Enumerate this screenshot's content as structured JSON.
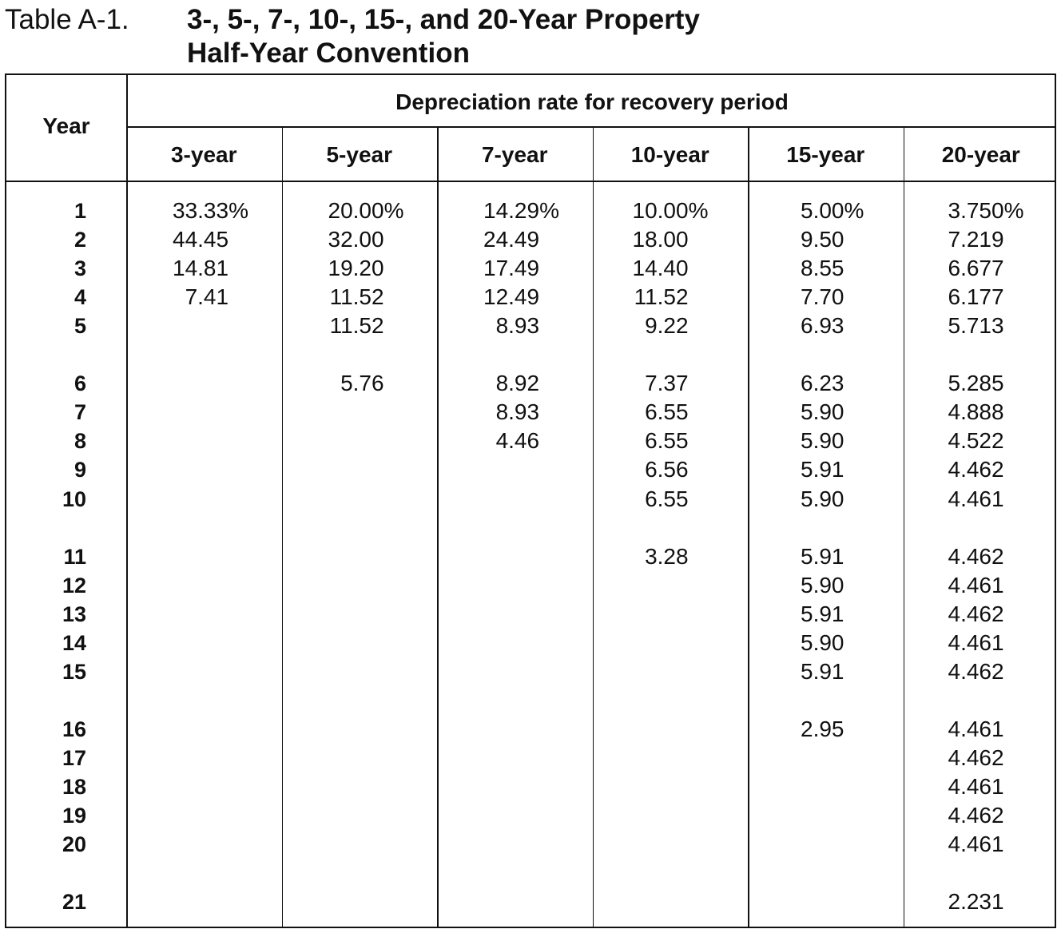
{
  "caption": {
    "label": "Table A-1.",
    "title_line1": "3-, 5-, 7-, 10-, 15-, and 20-Year Property",
    "title_line2": "Half-Year Convention"
  },
  "table": {
    "year_header": "Year",
    "group_header": "Depreciation rate for recovery period",
    "columns": [
      "3-year",
      "5-year",
      "7-year",
      "10-year",
      "15-year",
      "20-year"
    ],
    "years": [
      "1",
      "2",
      "3",
      "4",
      "5",
      "6",
      "7",
      "8",
      "9",
      "10",
      "11",
      "12",
      "13",
      "14",
      "15",
      "16",
      "17",
      "18",
      "19",
      "20",
      "21"
    ],
    "rates": [
      [
        "33.33%",
        "44.45",
        "14.81",
        "7.41"
      ],
      [
        "20.00%",
        "32.00",
        "19.20",
        "11.52",
        "11.52",
        "5.76"
      ],
      [
        "14.29%",
        "24.49",
        "17.49",
        "12.49",
        "8.93",
        "8.92",
        "8.93",
        "4.46"
      ],
      [
        "10.00%",
        "18.00",
        "14.40",
        "11.52",
        "9.22",
        "7.37",
        "6.55",
        "6.55",
        "6.56",
        "6.55",
        "3.28"
      ],
      [
        "5.00%",
        "9.50",
        "8.55",
        "7.70",
        "6.93",
        "6.23",
        "5.90",
        "5.90",
        "5.91",
        "5.90",
        "5.91",
        "5.90",
        "5.91",
        "5.90",
        "5.91",
        "2.95"
      ],
      [
        "3.750%",
        "7.219",
        "6.677",
        "6.177",
        "5.713",
        "5.285",
        "4.888",
        "4.522",
        "4.462",
        "4.461",
        "4.462",
        "4.461",
        "4.462",
        "4.461",
        "4.462",
        "4.461",
        "4.462",
        "4.461",
        "4.462",
        "4.461",
        "2.231"
      ]
    ]
  }
}
